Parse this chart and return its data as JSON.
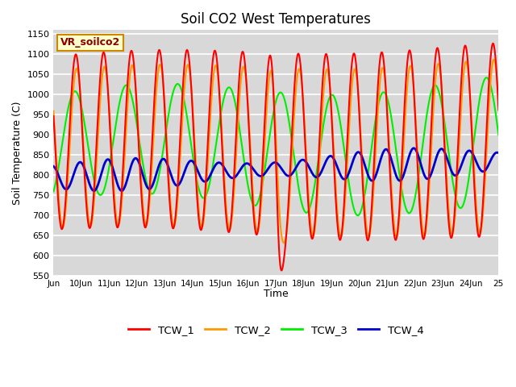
{
  "title": "Soil CO2 West Temperatures",
  "ylabel": "Soil Temperature (C)",
  "xlabel": "Time",
  "ylim": [
    550,
    1160
  ],
  "yticks": [
    550,
    600,
    650,
    700,
    750,
    800,
    850,
    900,
    950,
    1000,
    1050,
    1100,
    1150
  ],
  "background_color": "#d8d8d8",
  "fig_color": "#ffffff",
  "label_text": "VR_soilco2",
  "label_bg": "#ffffcc",
  "label_border": "#cc8800",
  "legend": [
    "TCW_1",
    "TCW_2",
    "TCW_3",
    "TCW_4"
  ],
  "colors": [
    "#ff0000",
    "#ff9900",
    "#00ee00",
    "#0000cc"
  ],
  "linewidths": [
    1.5,
    1.5,
    1.5,
    2.0
  ],
  "n_points": 2000,
  "x_start": 9.0,
  "x_end": 25.0,
  "xtick_positions": [
    9,
    10,
    11,
    12,
    13,
    14,
    15,
    16,
    17,
    18,
    19,
    20,
    21,
    22,
    23,
    24,
    25
  ],
  "xtick_labels": [
    "Jun",
    "10Jun",
    "11Jun",
    "12Jun",
    "13Jun",
    "14Jun",
    "15Jun",
    "16Jun",
    "17Jun",
    "18Jun",
    "19Jun",
    "20Jun",
    "21Jun",
    "22Jun",
    "23Jun",
    "24Jun",
    "25"
  ]
}
